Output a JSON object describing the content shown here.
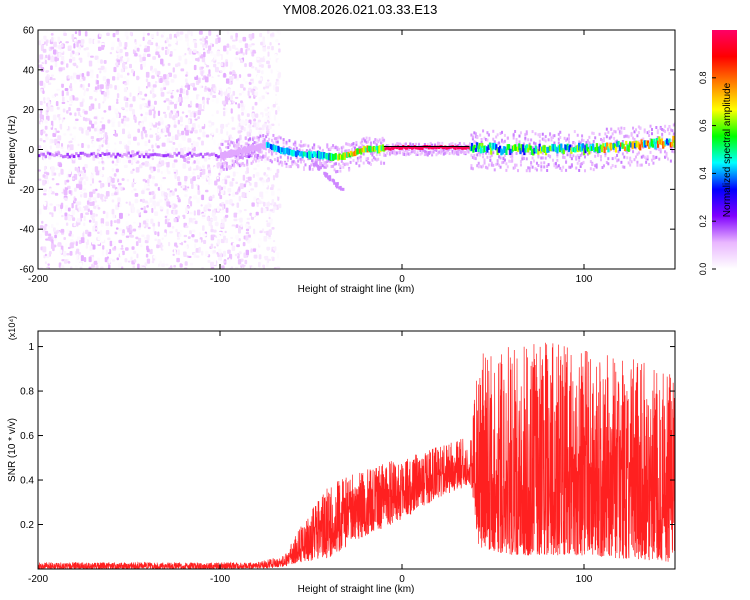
{
  "figure": {
    "title": "YM08.2026.021.03.33.E13"
  },
  "chart_data": [
    {
      "type": "heatmap",
      "title": "YM08.2026.021.03.33.E13",
      "xlabel": "Height of straight line (km)",
      "ylabel": "Frequency (Hz)",
      "xlim": [
        -200,
        150
      ],
      "ylim": [
        -60,
        60
      ],
      "x_ticks": [
        -200,
        -100,
        0,
        100
      ],
      "y_ticks": [
        -60,
        -40,
        -20,
        0,
        20,
        40,
        60
      ],
      "colorbar": {
        "label": "Normalized spectral amplitude",
        "range": [
          0,
          1
        ],
        "ticks": [
          0.0,
          0.2,
          0.4,
          0.6,
          0.8
        ],
        "colormap": [
          "#ffffff",
          "#e9b6ff",
          "#8000ff",
          "#0000ff",
          "#00ffff",
          "#00ff00",
          "#ffff00",
          "#ff8000",
          "#ff0000",
          "#ff0066"
        ]
      },
      "regions": [
        {
          "name": "noise",
          "x_range": [
            -200,
            -68
          ],
          "f_range": [
            -60,
            60
          ],
          "amplitude": 0.1
        },
        {
          "name": "signal-track",
          "x_range": [
            -75,
            150
          ],
          "f_center_path": [
            [
              -100,
              -3
            ],
            [
              -75,
              2
            ],
            [
              -60,
              -2
            ],
            [
              -45,
              -3
            ],
            [
              -35,
              -4
            ],
            [
              -20,
              0
            ],
            [
              0,
              1
            ],
            [
              35,
              1
            ],
            [
              60,
              0
            ],
            [
              100,
              0
            ],
            [
              150,
              4
            ]
          ],
          "amplitude": 0.7
        },
        {
          "name": "branch",
          "x_range": [
            -50,
            -32
          ],
          "f_path": [
            [
              -50,
              -5
            ],
            [
              -33,
              -20
            ]
          ],
          "amplitude": 0.15
        }
      ]
    },
    {
      "type": "line",
      "xlabel": "Height of straight line (km)",
      "ylabel": "SNR (10 * v/v)",
      "y_multiplier_label": "(x10⁴)",
      "xlim": [
        -200,
        150
      ],
      "ylim": [
        0,
        1.07
      ],
      "x_ticks": [
        -200,
        -100,
        0,
        100
      ],
      "y_ticks": [
        0.2,
        0.4,
        0.6,
        0.8,
        1.0
      ],
      "line_color": "#ff2020",
      "envelope": [
        {
          "x": -200,
          "lo": 0.0,
          "hi": 0.03
        },
        {
          "x": -80,
          "lo": 0.0,
          "hi": 0.03
        },
        {
          "x": -65,
          "lo": 0.01,
          "hi": 0.06
        },
        {
          "x": -55,
          "lo": 0.03,
          "hi": 0.2
        },
        {
          "x": -40,
          "lo": 0.05,
          "hi": 0.38
        },
        {
          "x": -20,
          "lo": 0.15,
          "hi": 0.45
        },
        {
          "x": 0,
          "lo": 0.22,
          "hi": 0.5
        },
        {
          "x": 20,
          "lo": 0.32,
          "hi": 0.55
        },
        {
          "x": 38,
          "lo": 0.38,
          "hi": 0.6
        },
        {
          "x": 42,
          "lo": 0.1,
          "hi": 0.98
        },
        {
          "x": 60,
          "lo": 0.06,
          "hi": 1.05
        },
        {
          "x": 100,
          "lo": 0.06,
          "hi": 1.0
        },
        {
          "x": 150,
          "lo": 0.03,
          "hi": 0.9
        }
      ]
    }
  ]
}
